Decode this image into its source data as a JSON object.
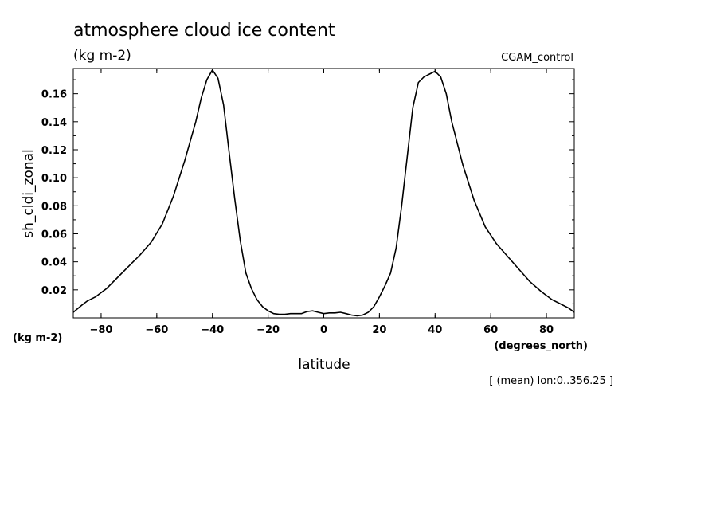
{
  "chart_data": {
    "type": "line",
    "title": "atmosphere cloud ice content",
    "subtitle": "(kg m-2)",
    "experiment": "CGAM_control",
    "ylabel": "sh_cldi_zonal",
    "yunits": "(kg m-2)",
    "xlabel": "latitude",
    "xunits": "(degrees_north)",
    "footnote": "[ (mean) lon:0..356.25 ]",
    "xlim": [
      -90,
      90
    ],
    "ylim": [
      0,
      0.178
    ],
    "xticks": [
      -80,
      -60,
      -40,
      -20,
      0,
      20,
      40,
      60,
      80
    ],
    "yticks": [
      0.02,
      0.04,
      0.06,
      0.08,
      0.1,
      0.12,
      0.14,
      0.16
    ],
    "ytick_labels": [
      "0.02",
      "0.04",
      "0.06",
      "0.08",
      "0.10",
      "0.12",
      "0.14",
      "0.16"
    ],
    "grid": false,
    "series": [
      {
        "x": [
          -90,
          -87,
          -85,
          -82,
          -78,
          -74,
          -70,
          -66,
          -62,
          -58,
          -54,
          -50,
          -46,
          -44,
          -42,
          -40,
          -38,
          -36,
          -34,
          -32,
          -30,
          -28,
          -26,
          -24,
          -22,
          -20,
          -18,
          -16,
          -14,
          -12,
          -10,
          -8,
          -6,
          -4,
          -2,
          0,
          2,
          4,
          6,
          8,
          10,
          12,
          14,
          16,
          18,
          20,
          22,
          24,
          26,
          28,
          30,
          32,
          34,
          36,
          38,
          40,
          42,
          44,
          46,
          50,
          54,
          58,
          62,
          66,
          70,
          74,
          78,
          82,
          85,
          88,
          90
        ],
        "y": [
          0.004,
          0.009,
          0.012,
          0.015,
          0.021,
          0.029,
          0.037,
          0.045,
          0.054,
          0.067,
          0.087,
          0.112,
          0.14,
          0.157,
          0.17,
          0.177,
          0.171,
          0.152,
          0.118,
          0.085,
          0.055,
          0.032,
          0.021,
          0.013,
          0.008,
          0.005,
          0.003,
          0.0025,
          0.0025,
          0.003,
          0.003,
          0.003,
          0.0045,
          0.005,
          0.004,
          0.003,
          0.0035,
          0.0035,
          0.004,
          0.003,
          0.002,
          0.0015,
          0.002,
          0.004,
          0.008,
          0.015,
          0.023,
          0.032,
          0.05,
          0.08,
          0.115,
          0.15,
          0.168,
          0.172,
          0.174,
          0.176,
          0.172,
          0.16,
          0.14,
          0.109,
          0.084,
          0.065,
          0.053,
          0.044,
          0.035,
          0.026,
          0.019,
          0.013,
          0.01,
          0.007,
          0.004
        ]
      }
    ]
  }
}
